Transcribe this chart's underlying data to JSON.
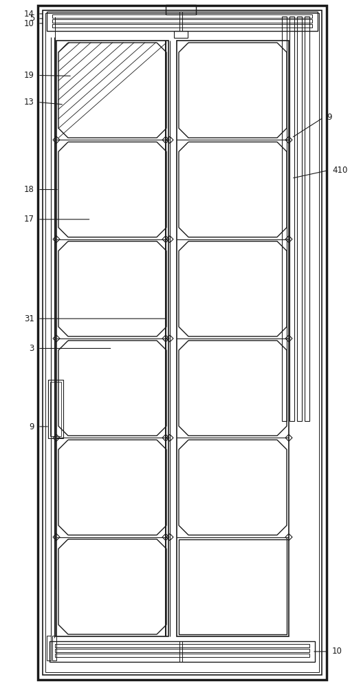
{
  "bg_color": "#ffffff",
  "line_color": "#1a1a1a",
  "fig_width": 5.25,
  "fig_height": 10.0,
  "dpi": 100
}
